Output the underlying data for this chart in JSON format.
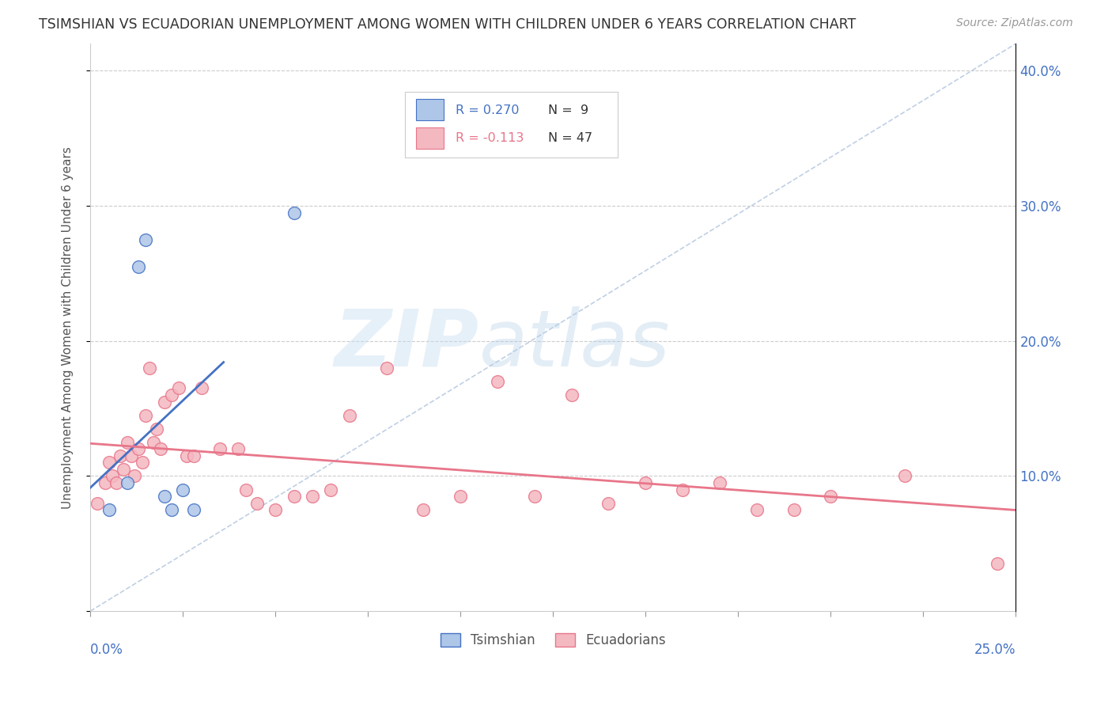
{
  "title": "TSIMSHIAN VS ECUADORIAN UNEMPLOYMENT AMONG WOMEN WITH CHILDREN UNDER 6 YEARS CORRELATION CHART",
  "source": "Source: ZipAtlas.com",
  "ylabel": "Unemployment Among Women with Children Under 6 years",
  "xlim": [
    0.0,
    25.0
  ],
  "ylim": [
    0.0,
    42.0
  ],
  "legend_r1": "R = 0.270",
  "legend_n1": "N =  9",
  "legend_r2": "R = -0.113",
  "legend_n2": "N = 47",
  "tsimshian_color": "#aec6e8",
  "tsimshian_line_color": "#4472c4",
  "ecuadorian_color": "#f4b8c1",
  "ecuadorian_line_color": "#e8768a",
  "watermark_zip": "ZIP",
  "watermark_atlas": "atlas",
  "background_color": "#ffffff",
  "tsimshian_x": [
    0.5,
    1.0,
    1.3,
    1.5,
    2.0,
    2.2,
    2.5,
    2.8,
    5.5
  ],
  "tsimshian_y": [
    7.5,
    9.5,
    25.5,
    27.5,
    8.5,
    7.5,
    9.0,
    7.5,
    29.5
  ],
  "ecuadorian_x": [
    0.2,
    0.4,
    0.5,
    0.6,
    0.7,
    0.8,
    0.9,
    1.0,
    1.1,
    1.2,
    1.3,
    1.4,
    1.5,
    1.6,
    1.7,
    1.8,
    1.9,
    2.0,
    2.2,
    2.4,
    2.6,
    2.8,
    3.0,
    3.5,
    4.0,
    4.2,
    4.5,
    5.0,
    5.5,
    6.0,
    6.5,
    7.0,
    8.0,
    9.0,
    10.0,
    11.0,
    12.0,
    13.0,
    14.0,
    15.0,
    16.0,
    17.0,
    18.0,
    19.0,
    20.0,
    22.0,
    24.5
  ],
  "ecuadorian_y": [
    8.0,
    9.5,
    11.0,
    10.0,
    9.5,
    11.5,
    10.5,
    12.5,
    11.5,
    10.0,
    12.0,
    11.0,
    14.5,
    18.0,
    12.5,
    13.5,
    12.0,
    15.5,
    16.0,
    16.5,
    11.5,
    11.5,
    16.5,
    12.0,
    12.0,
    9.0,
    8.0,
    7.5,
    8.5,
    8.5,
    9.0,
    14.5,
    18.0,
    7.5,
    8.5,
    17.0,
    8.5,
    16.0,
    8.0,
    9.5,
    9.0,
    9.5,
    7.5,
    7.5,
    8.5,
    10.0,
    3.5
  ]
}
